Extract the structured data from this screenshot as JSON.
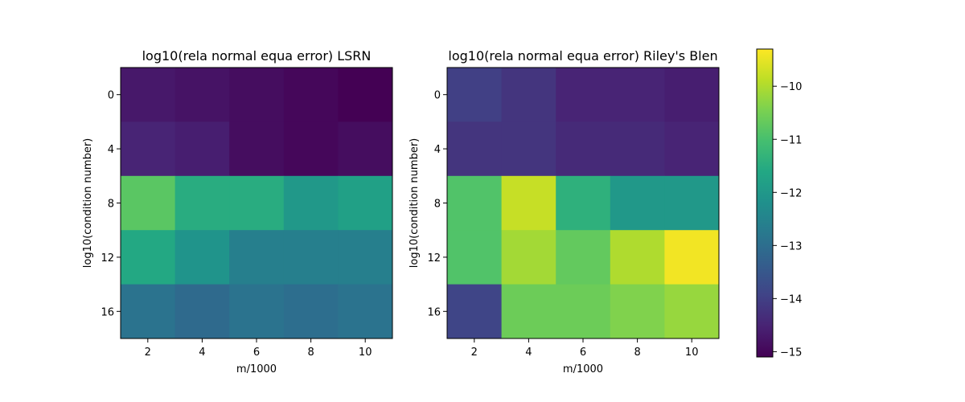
{
  "chart_data": [
    {
      "type": "heatmap",
      "title": "log10(rela normal equa error) LSRN",
      "xlabel": "m/1000",
      "ylabel": "log10(condition number)",
      "x_ticks": [
        "2",
        "4",
        "6",
        "8",
        "10"
      ],
      "y_ticks": [
        "0",
        "4",
        "8",
        "12",
        "16"
      ],
      "xlim": [
        1,
        11
      ],
      "ylim": [
        18,
        -2
      ],
      "x": [
        2,
        4,
        6,
        8,
        10
      ],
      "y": [
        0,
        4,
        8,
        12,
        16
      ],
      "values": [
        [
          -14.7,
          -14.8,
          -14.9,
          -15.0,
          -15.1
        ],
        [
          -14.5,
          -14.6,
          -14.9,
          -15.0,
          -14.9
        ],
        [
          -10.8,
          -11.5,
          -11.5,
          -12.0,
          -11.8
        ],
        [
          -11.6,
          -12.1,
          -12.6,
          -12.6,
          -12.6
        ],
        [
          -12.9,
          -13.1,
          -12.9,
          -13.0,
          -12.9
        ]
      ]
    },
    {
      "type": "heatmap",
      "title": "log10(rela normal equa error) Riley's Blen",
      "xlabel": "m/1000",
      "ylabel": "log10(condition number)",
      "x_ticks": [
        "2",
        "4",
        "6",
        "8",
        "10"
      ],
      "y_ticks": [
        "0",
        "4",
        "8",
        "12",
        "16"
      ],
      "xlim": [
        1,
        11
      ],
      "ylim": [
        18,
        -2
      ],
      "x": [
        2,
        4,
        6,
        8,
        10
      ],
      "y": [
        0,
        4,
        8,
        12,
        16
      ],
      "values": [
        [
          -14.0,
          -14.2,
          -14.5,
          -14.5,
          -14.6
        ],
        [
          -14.2,
          -14.2,
          -14.4,
          -14.4,
          -14.5
        ],
        [
          -10.9,
          -9.8,
          -11.4,
          -12.0,
          -12.0
        ],
        [
          -10.9,
          -10.1,
          -10.7,
          -10.0,
          -9.4
        ],
        [
          -13.9,
          -10.6,
          -10.6,
          -10.4,
          -10.2
        ]
      ]
    }
  ],
  "colorbar": {
    "vmin": -15.1,
    "vmax": -9.3,
    "ticks": [
      -10,
      -11,
      -12,
      -13,
      -14,
      -15
    ],
    "tick_labels": [
      "−10",
      "−11",
      "−12",
      "−13",
      "−14",
      "−15"
    ],
    "colormap": "viridis"
  }
}
